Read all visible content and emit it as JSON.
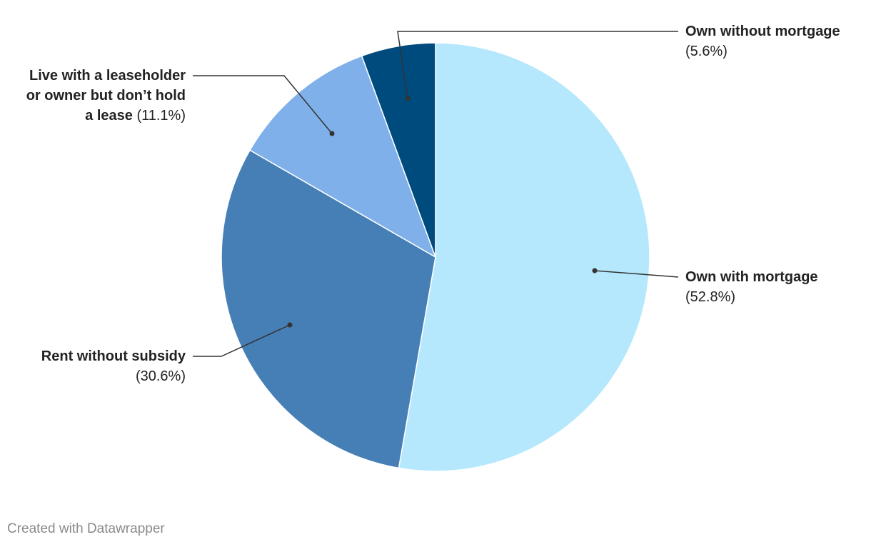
{
  "chart_data": {
    "type": "pie",
    "categories": [
      "Own with mortgage",
      "Rent without subsidy",
      "Live with a leaseholder or owner but don’t hold a lease",
      "Own without mortgage"
    ],
    "values": [
      52.8,
      30.6,
      11.1,
      5.6
    ],
    "value_labels": [
      "(52.8%)",
      "(30.6%)",
      "(11.1%)",
      "(5.6%)"
    ],
    "colors": [
      "#b5e8fc",
      "#467fb6",
      "#7fb0ea",
      "#004b7d"
    ],
    "credit": "Created with Datawrapper"
  }
}
